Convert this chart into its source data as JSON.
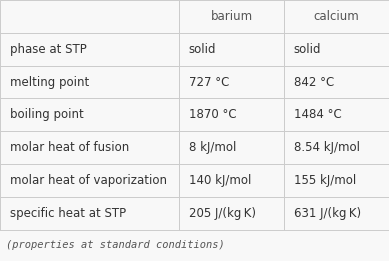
{
  "headers": [
    "",
    "barium",
    "calcium"
  ],
  "rows": [
    [
      "phase at STP",
      "solid",
      "solid"
    ],
    [
      "melting point",
      "727 °C",
      "842 °C"
    ],
    [
      "boiling point",
      "1870 °C",
      "1484 °C"
    ],
    [
      "molar heat of fusion",
      "8 kJ/mol",
      "8.54 kJ/mol"
    ],
    [
      "molar heat of vaporization",
      "140 kJ/mol",
      "155 kJ/mol"
    ],
    [
      "specific heat at STP",
      "205 J/(kg K)",
      "631 J/(kg K)"
    ]
  ],
  "footer": "(properties at standard conditions)",
  "bg_color": "#f8f8f8",
  "line_color": "#cccccc",
  "header_text_color": "#555555",
  "row_text_color": "#333333",
  "footer_color": "#555555",
  "font_size": 8.5,
  "footer_font_size": 7.5
}
